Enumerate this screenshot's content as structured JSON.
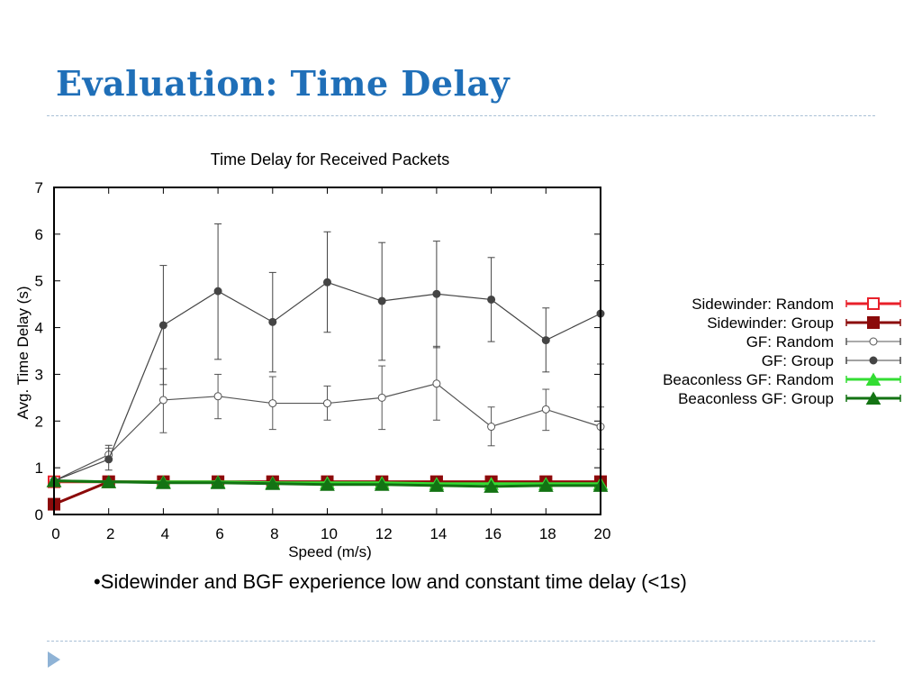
{
  "slide": {
    "title": "Evaluation: Time Delay",
    "bullet": "Sidewinder and BGF experience low and constant time delay (<1s)",
    "bullet_marker": "•",
    "nav_icon": "triangle-right-icon",
    "title_color": "#1f6fb8"
  },
  "chart_data": {
    "type": "line",
    "title": "Time Delay for Received Packets",
    "xlabel": "Speed (m/s)",
    "ylabel": "Avg. Time Delay (s)",
    "xlim": [
      0,
      20
    ],
    "ylim": [
      0,
      7
    ],
    "xticks": [
      0,
      2,
      4,
      6,
      8,
      10,
      12,
      14,
      16,
      18,
      20
    ],
    "yticks": [
      0,
      1,
      2,
      3,
      4,
      5,
      6,
      7
    ],
    "grid": false,
    "legend_position": "right",
    "x": [
      0,
      2,
      4,
      6,
      8,
      10,
      12,
      14,
      16,
      18,
      20
    ],
    "series": [
      {
        "name": "Sidewinder: Random",
        "color": "#e8202a",
        "marker": "open-square",
        "values": [
          0.7,
          0.7,
          0.7,
          0.7,
          0.7,
          0.7,
          0.7,
          0.7,
          0.7,
          0.7,
          0.7
        ]
      },
      {
        "name": "Sidewinder: Group",
        "color": "#8b0a0a",
        "marker": "filled-square",
        "values": [
          0.22,
          0.7,
          0.7,
          0.7,
          0.7,
          0.7,
          0.7,
          0.7,
          0.7,
          0.7,
          0.7
        ]
      },
      {
        "name": "GF: Random",
        "color": "#555555",
        "marker": "open-circle",
        "values": [
          0.72,
          1.28,
          2.45,
          2.53,
          2.38,
          2.38,
          2.5,
          2.8,
          1.88,
          2.25,
          1.88
        ],
        "err_low": [
          0.72,
          1.2,
          1.75,
          2.05,
          1.82,
          2.02,
          1.82,
          2.02,
          1.47,
          1.8,
          1.4
        ],
        "err_high": [
          0.72,
          1.42,
          3.12,
          3.0,
          2.95,
          2.75,
          3.18,
          3.6,
          2.3,
          2.68,
          2.3
        ]
      },
      {
        "name": "GF: Group",
        "color": "#444444",
        "marker": "filled-circle",
        "values": [
          0.72,
          1.18,
          4.05,
          4.78,
          4.12,
          4.97,
          4.57,
          4.72,
          4.6,
          3.73,
          4.3
        ],
        "err_low": [
          0.72,
          0.95,
          2.78,
          3.32,
          3.05,
          3.9,
          3.3,
          3.57,
          3.7,
          3.05,
          3.22
        ],
        "err_high": [
          0.72,
          1.48,
          5.33,
          6.22,
          5.18,
          6.05,
          5.82,
          5.85,
          5.5,
          4.42,
          5.35
        ]
      },
      {
        "name": "Beaconless GF: Random",
        "color": "#33dd33",
        "marker": "open-triangle",
        "values": [
          0.72,
          0.7,
          0.7,
          0.7,
          0.68,
          0.68,
          0.68,
          0.66,
          0.66,
          0.66,
          0.66
        ]
      },
      {
        "name": "Beaconless GF: Group",
        "color": "#137313",
        "marker": "filled-triangle",
        "values": [
          0.72,
          0.7,
          0.68,
          0.68,
          0.66,
          0.64,
          0.64,
          0.62,
          0.6,
          0.62,
          0.62
        ]
      }
    ]
  }
}
